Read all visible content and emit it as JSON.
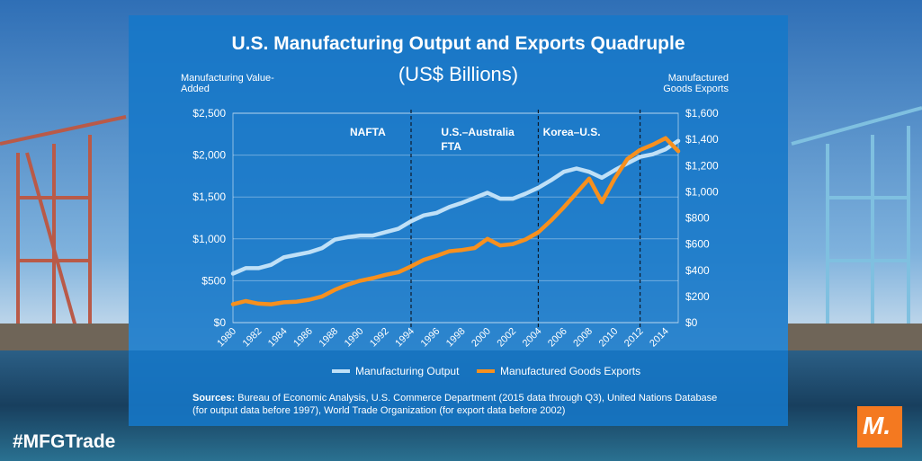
{
  "hashtag": "#MFGTrade",
  "logo_letter": "M.",
  "colors": {
    "panel": "#1678c8",
    "output_line": "#bfe0f7",
    "exports_line": "#f7901e",
    "logo": "#f47920"
  },
  "chart_data": {
    "type": "line",
    "title": "U.S. Manufacturing Output and Exports Quadruple",
    "subtitle": "(US$ Billions)",
    "y_left_label": "Manufacturing Value-Added",
    "y_right_label": "Manufactured Goods Exports",
    "y_left_lim": [
      0,
      2500
    ],
    "y_right_lim": [
      0,
      1600
    ],
    "y_left_ticks": [
      "$0",
      "$500",
      "$1,000",
      "$1,500",
      "$2,000",
      "$2,500"
    ],
    "y_right_ticks": [
      "$0",
      "$200",
      "$400",
      "$600",
      "$800",
      "$1,000",
      "$1,200",
      "$1,400",
      "$1,600"
    ],
    "x": [
      1980,
      1981,
      1982,
      1983,
      1984,
      1985,
      1986,
      1987,
      1988,
      1989,
      1990,
      1991,
      1992,
      1993,
      1994,
      1995,
      1996,
      1997,
      1998,
      1999,
      2000,
      2001,
      2002,
      2003,
      2004,
      2005,
      2006,
      2007,
      2008,
      2009,
      2010,
      2011,
      2012,
      2013,
      2014,
      2015
    ],
    "x_tick_labels": [
      "1980",
      "1982",
      "1984",
      "1986",
      "1988",
      "1990",
      "1992",
      "1994",
      "1996",
      "1998",
      "2000",
      "2002",
      "2004",
      "2006",
      "2008",
      "2010",
      "2012",
      "2014"
    ],
    "series": [
      {
        "name": "Manufacturing Output",
        "axis": "left",
        "values": [
          585,
          650,
          650,
          690,
          780,
          810,
          840,
          890,
          990,
          1020,
          1040,
          1040,
          1080,
          1120,
          1210,
          1280,
          1310,
          1380,
          1430,
          1490,
          1550,
          1480,
          1480,
          1540,
          1610,
          1700,
          1800,
          1840,
          1800,
          1730,
          1820,
          1900,
          1980,
          2010,
          2070,
          2170
        ]
      },
      {
        "name": "Manufactured Goods Exports",
        "axis": "right",
        "values": [
          140,
          165,
          145,
          140,
          155,
          160,
          175,
          200,
          250,
          290,
          320,
          340,
          365,
          385,
          430,
          480,
          510,
          545,
          555,
          570,
          640,
          590,
          600,
          635,
          690,
          780,
          880,
          990,
          1100,
          920,
          1100,
          1250,
          1320,
          1360,
          1410,
          1310
        ]
      }
    ],
    "annotations": [
      {
        "year": 1994,
        "label_lines": [
          "NAFTA"
        ]
      },
      {
        "year": 2004,
        "label_lines": [
          "U.S.–Australia",
          "FTA"
        ]
      },
      {
        "year": 2012,
        "label_lines": [
          "Korea–U.S."
        ]
      }
    ],
    "sources_label": "Sources:",
    "sources_text": "Bureau of Economic Analysis, U.S. Commerce Department (2015 data through Q3), United Nations Database (for output data before 1997), World Trade Organization (for export data before 2002)"
  }
}
